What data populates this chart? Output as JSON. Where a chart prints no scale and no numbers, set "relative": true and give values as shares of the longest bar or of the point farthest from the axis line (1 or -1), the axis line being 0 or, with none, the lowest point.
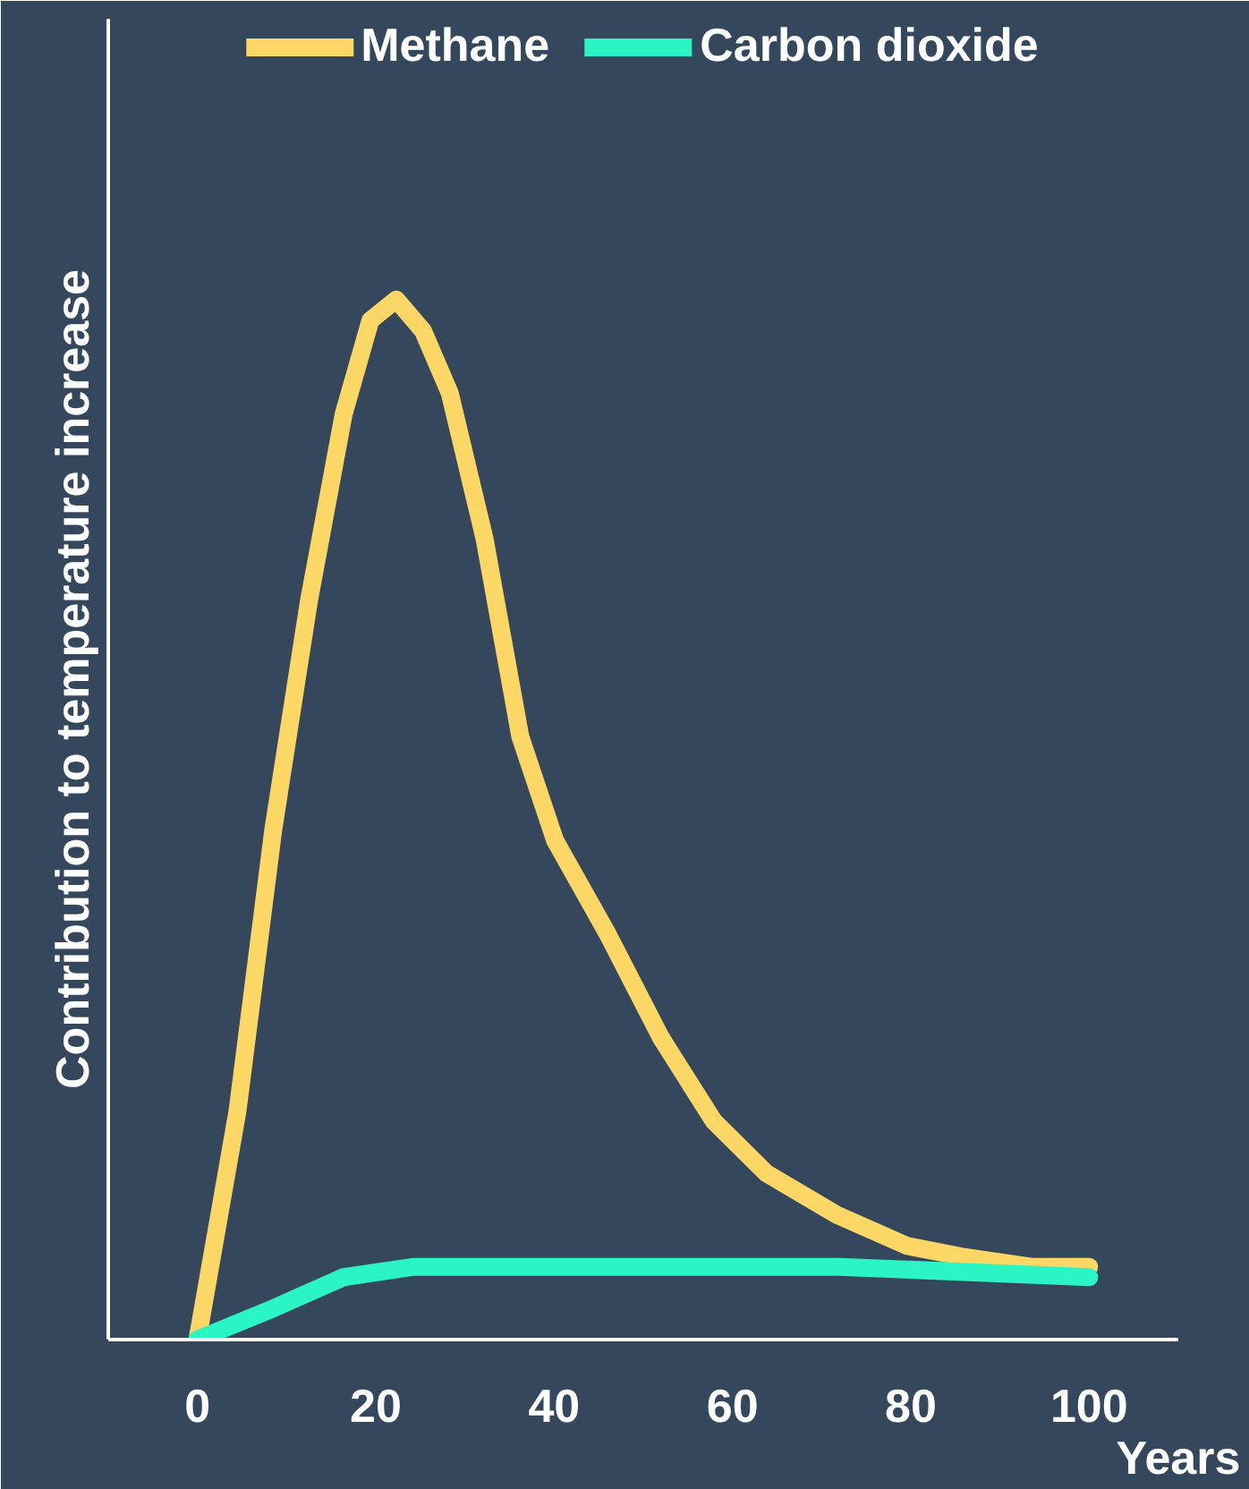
{
  "chart_data": {
    "type": "line",
    "relative": true,
    "xlabel": "Years",
    "ylabel": "Contribution to temperature increase",
    "x": [
      0,
      4.5,
      8.5,
      12.5,
      16.4,
      19.4,
      22.3,
      25.3,
      28.3,
      32.2,
      36.2,
      40.1,
      46,
      52,
      57.9,
      63.8,
      71.7,
      79.6,
      85.6,
      93.5,
      100
    ],
    "xlim": [
      -10,
      110
    ],
    "xticks": [
      0,
      20,
      40,
      60,
      80,
      100
    ],
    "grid": false,
    "legend": "top",
    "marker": "none",
    "line_style": "solid",
    "series": [
      {
        "name": "Methane",
        "color": "#fdd766",
        "values": [
          0,
          0.22,
          0.49,
          0.71,
          0.89,
          0.98,
          1.0,
          0.97,
          0.91,
          0.77,
          0.58,
          0.48,
          0.39,
          0.29,
          0.21,
          0.16,
          0.12,
          0.09,
          0.08,
          0.07,
          0.07
        ]
      },
      {
        "name": "Carbon dioxide",
        "color": "#2bf5c4",
        "x": [
          0,
          8.5,
          16.4,
          24.3,
          32.2,
          42,
          56,
          72,
          100
        ],
        "values": [
          0,
          0.03,
          0.06,
          0.07,
          0.07,
          0.07,
          0.07,
          0.07,
          0.06
        ]
      }
    ]
  }
}
